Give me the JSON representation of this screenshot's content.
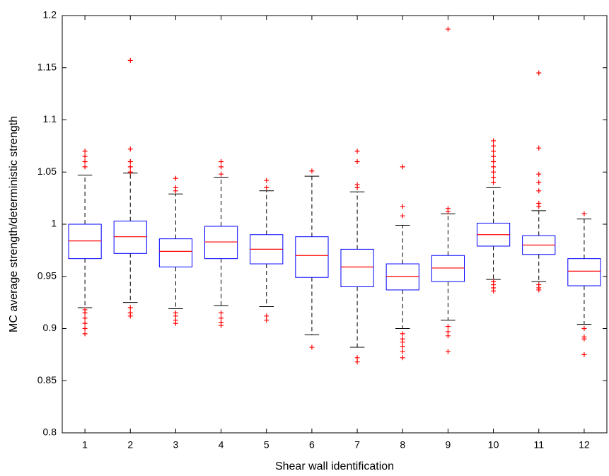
{
  "chart_data": {
    "type": "box",
    "xlabel": "Shear wall identification",
    "ylabel": "MC average strength/deterministic strength",
    "categories": [
      "1",
      "2",
      "3",
      "4",
      "5",
      "6",
      "7",
      "8",
      "9",
      "10",
      "11",
      "12"
    ],
    "boxes": [
      {
        "whisker_low": 0.92,
        "q1": 0.967,
        "median": 0.984,
        "q3": 1.0,
        "whisker_high": 1.047,
        "outliers": [
          1.07,
          1.065,
          1.06,
          1.055,
          0.918,
          0.915,
          0.91,
          0.905,
          0.9,
          0.895
        ]
      },
      {
        "whisker_low": 0.925,
        "q1": 0.972,
        "median": 0.988,
        "q3": 1.003,
        "whisker_high": 1.049,
        "outliers": [
          1.157,
          1.072,
          1.06,
          1.055,
          1.05,
          0.92,
          0.915,
          0.912
        ]
      },
      {
        "whisker_low": 0.919,
        "q1": 0.959,
        "median": 0.974,
        "q3": 0.986,
        "whisker_high": 1.029,
        "outliers": [
          1.044,
          1.035,
          1.032,
          0.915,
          0.912,
          0.908,
          0.905
        ]
      },
      {
        "whisker_low": 0.922,
        "q1": 0.967,
        "median": 0.983,
        "q3": 0.998,
        "whisker_high": 1.045,
        "outliers": [
          1.06,
          1.055,
          1.048,
          0.915,
          0.91,
          0.906,
          0.903
        ]
      },
      {
        "whisker_low": 0.921,
        "q1": 0.962,
        "median": 0.976,
        "q3": 0.99,
        "whisker_high": 1.032,
        "outliers": [
          1.042,
          1.035,
          0.912,
          0.908
        ]
      },
      {
        "whisker_low": 0.894,
        "q1": 0.949,
        "median": 0.97,
        "q3": 0.988,
        "whisker_high": 1.046,
        "outliers": [
          1.051,
          0.882
        ]
      },
      {
        "whisker_low": 0.882,
        "q1": 0.94,
        "median": 0.959,
        "q3": 0.976,
        "whisker_high": 1.031,
        "outliers": [
          1.07,
          1.06,
          1.038,
          1.035,
          0.872,
          0.868
        ]
      },
      {
        "whisker_low": 0.9,
        "q1": 0.937,
        "median": 0.95,
        "q3": 0.962,
        "whisker_high": 0.999,
        "outliers": [
          1.055,
          1.017,
          1.008,
          0.895,
          0.89,
          0.887,
          0.883,
          0.878,
          0.872
        ]
      },
      {
        "whisker_low": 0.908,
        "q1": 0.945,
        "median": 0.958,
        "q3": 0.97,
        "whisker_high": 1.01,
        "outliers": [
          1.187,
          1.015,
          1.012,
          0.902,
          0.897,
          0.893,
          0.878
        ]
      },
      {
        "whisker_low": 0.947,
        "q1": 0.979,
        "median": 0.99,
        "q3": 1.001,
        "whisker_high": 1.035,
        "outliers": [
          1.08,
          1.075,
          1.07,
          1.065,
          1.06,
          1.055,
          1.05,
          1.045,
          1.04,
          0.945,
          0.942,
          0.939,
          0.936
        ]
      },
      {
        "whisker_low": 0.945,
        "q1": 0.971,
        "median": 0.98,
        "q3": 0.989,
        "whisker_high": 1.013,
        "outliers": [
          1.145,
          1.073,
          1.048,
          1.04,
          1.032,
          1.02,
          1.017,
          0.942,
          0.939,
          0.937
        ]
      },
      {
        "whisker_low": 0.904,
        "q1": 0.941,
        "median": 0.955,
        "q3": 0.967,
        "whisker_high": 1.005,
        "outliers": [
          1.01,
          0.9,
          0.892,
          0.89,
          0.875
        ]
      }
    ],
    "box_color": "#0000ff",
    "median_color": "#ff0000",
    "whisker_color": "#000000",
    "outlier_color": "#ff0000",
    "ylim": [
      0.8,
      1.2
    ],
    "yticks": [
      0.8,
      0.85,
      0.9,
      0.95,
      1,
      1.05,
      1.1,
      1.15,
      1.2
    ]
  }
}
